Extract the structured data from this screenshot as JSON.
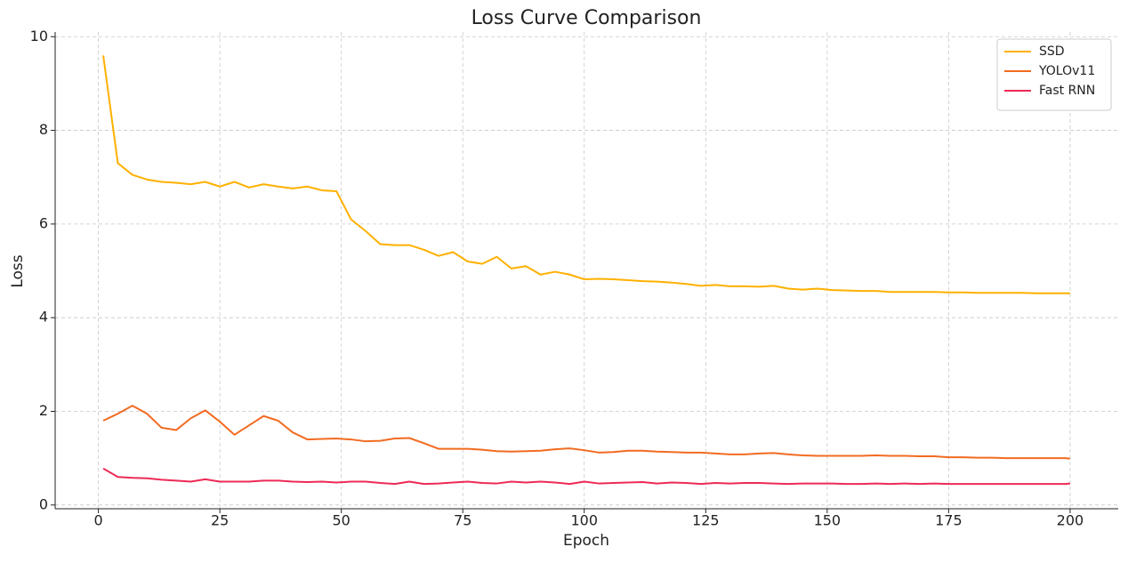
{
  "chart_data": {
    "type": "line",
    "title": "Loss Curve Comparison",
    "x_label": "Epoch",
    "y_label": "Loss",
    "x": [
      1,
      4,
      7,
      10,
      13,
      16,
      19,
      22,
      25,
      28,
      31,
      34,
      37,
      40,
      43,
      46,
      49,
      52,
      55,
      58,
      61,
      64,
      67,
      70,
      73,
      76,
      79,
      82,
      85,
      88,
      91,
      94,
      97,
      100,
      103,
      106,
      109,
      112,
      115,
      118,
      121,
      124,
      127,
      130,
      133,
      136,
      139,
      142,
      145,
      148,
      151,
      154,
      157,
      160,
      163,
      166,
      169,
      172,
      175,
      178,
      181,
      184,
      187,
      190,
      193,
      196,
      199,
      200
    ],
    "series": [
      {
        "name": "SSD",
        "color": "#ffb000",
        "values": [
          9.6,
          7.3,
          7.05,
          6.95,
          6.9,
          6.88,
          6.85,
          6.9,
          6.8,
          6.9,
          6.78,
          6.85,
          6.8,
          6.76,
          6.8,
          6.72,
          6.7,
          6.1,
          5.85,
          5.57,
          5.55,
          5.55,
          5.45,
          5.32,
          5.4,
          5.2,
          5.15,
          5.3,
          5.05,
          5.1,
          4.92,
          4.98,
          4.92,
          4.82,
          4.83,
          4.82,
          4.8,
          4.78,
          4.77,
          4.75,
          4.72,
          4.68,
          4.7,
          4.67,
          4.67,
          4.66,
          4.68,
          4.62,
          4.6,
          4.62,
          4.59,
          4.58,
          4.57,
          4.57,
          4.55,
          4.55,
          4.55,
          4.55,
          4.54,
          4.54,
          4.53,
          4.53,
          4.53,
          4.53,
          4.52,
          4.52,
          4.52,
          4.52
        ]
      },
      {
        "name": "YOLOv11",
        "color": "#f26b21",
        "values": [
          1.8,
          1.95,
          2.12,
          1.95,
          1.65,
          1.6,
          1.85,
          2.02,
          1.78,
          1.5,
          1.7,
          1.9,
          1.8,
          1.55,
          1.4,
          1.41,
          1.42,
          1.4,
          1.36,
          1.37,
          1.42,
          1.43,
          1.32,
          1.2,
          1.2,
          1.2,
          1.18,
          1.15,
          1.14,
          1.15,
          1.16,
          1.19,
          1.21,
          1.17,
          1.12,
          1.13,
          1.16,
          1.16,
          1.14,
          1.13,
          1.12,
          1.12,
          1.1,
          1.08,
          1.08,
          1.1,
          1.11,
          1.08,
          1.06,
          1.05,
          1.05,
          1.05,
          1.05,
          1.06,
          1.05,
          1.05,
          1.04,
          1.04,
          1.02,
          1.02,
          1.01,
          1.01,
          1.0,
          1.0,
          1.0,
          1.0,
          1.0,
          0.99
        ]
      },
      {
        "name": "Fast RNN",
        "color": "#ee2a55",
        "values": [
          0.78,
          0.6,
          0.58,
          0.57,
          0.54,
          0.52,
          0.5,
          0.55,
          0.5,
          0.5,
          0.5,
          0.52,
          0.52,
          0.5,
          0.49,
          0.5,
          0.48,
          0.5,
          0.5,
          0.47,
          0.45,
          0.5,
          0.45,
          0.46,
          0.48,
          0.5,
          0.47,
          0.46,
          0.5,
          0.48,
          0.5,
          0.48,
          0.45,
          0.5,
          0.46,
          0.47,
          0.48,
          0.49,
          0.46,
          0.48,
          0.47,
          0.45,
          0.47,
          0.46,
          0.47,
          0.47,
          0.46,
          0.45,
          0.46,
          0.46,
          0.46,
          0.45,
          0.45,
          0.46,
          0.45,
          0.46,
          0.45,
          0.46,
          0.45,
          0.45,
          0.45,
          0.45,
          0.45,
          0.45,
          0.45,
          0.45,
          0.45,
          0.46
        ]
      }
    ],
    "xlim": [
      -8.9,
      209.9
    ],
    "xticks": [
      0,
      25,
      50,
      75,
      100,
      125,
      150,
      175,
      200
    ],
    "ylim": [
      -0.08,
      10.1
    ],
    "yticks": [
      0,
      2,
      4,
      6,
      8,
      10
    ],
    "grid": true,
    "legend": "upper right"
  }
}
